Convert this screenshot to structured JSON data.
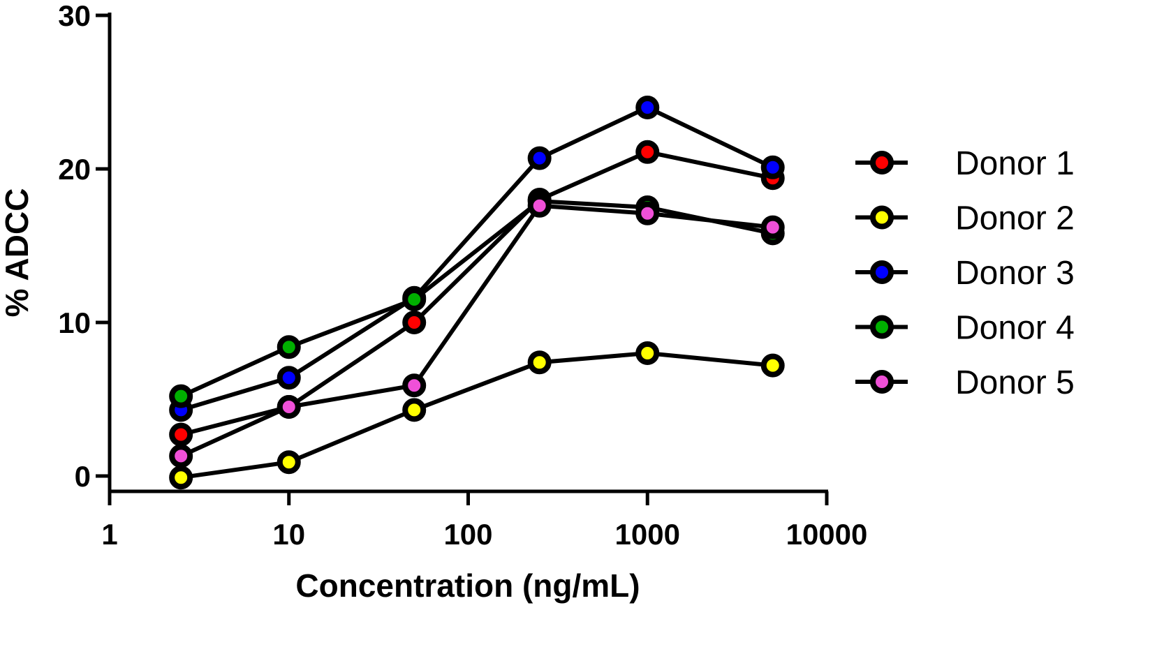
{
  "chart_data": {
    "type": "line",
    "title": "",
    "xlabel": "Concentration (ng/mL)",
    "ylabel": "% ADCC",
    "xscale": "log",
    "xlim": [
      1,
      10000
    ],
    "ylim": [
      -1,
      30
    ],
    "xticks": [
      1,
      10,
      100,
      1000,
      10000
    ],
    "xtick_labels": [
      "1",
      "10",
      "100",
      "1000",
      "10000"
    ],
    "yticks": [
      0,
      10,
      20,
      30
    ],
    "ytick_labels": [
      "0",
      "10",
      "20",
      "30"
    ],
    "grid": false,
    "legend_position": "right",
    "x": [
      2.5,
      10,
      50,
      250,
      1000,
      5000
    ],
    "series": [
      {
        "name": "Donor 1",
        "color": "#ff0000",
        "values": [
          2.7,
          4.5,
          10.0,
          18.0,
          21.1,
          19.4
        ]
      },
      {
        "name": "Donor 2",
        "color": "#ffff00",
        "values": [
          -0.1,
          0.9,
          4.3,
          7.4,
          8.0,
          7.2
        ]
      },
      {
        "name": "Donor 3",
        "color": "#0000ff",
        "values": [
          4.3,
          6.4,
          11.6,
          20.7,
          24.0,
          20.1
        ]
      },
      {
        "name": "Donor 4",
        "color": "#00b000",
        "values": [
          5.2,
          8.4,
          11.5,
          17.9,
          17.5,
          15.8
        ]
      },
      {
        "name": "Donor 5",
        "color": "#f050d8",
        "values": [
          1.3,
          4.5,
          5.9,
          17.6,
          17.1,
          16.2
        ]
      }
    ]
  }
}
